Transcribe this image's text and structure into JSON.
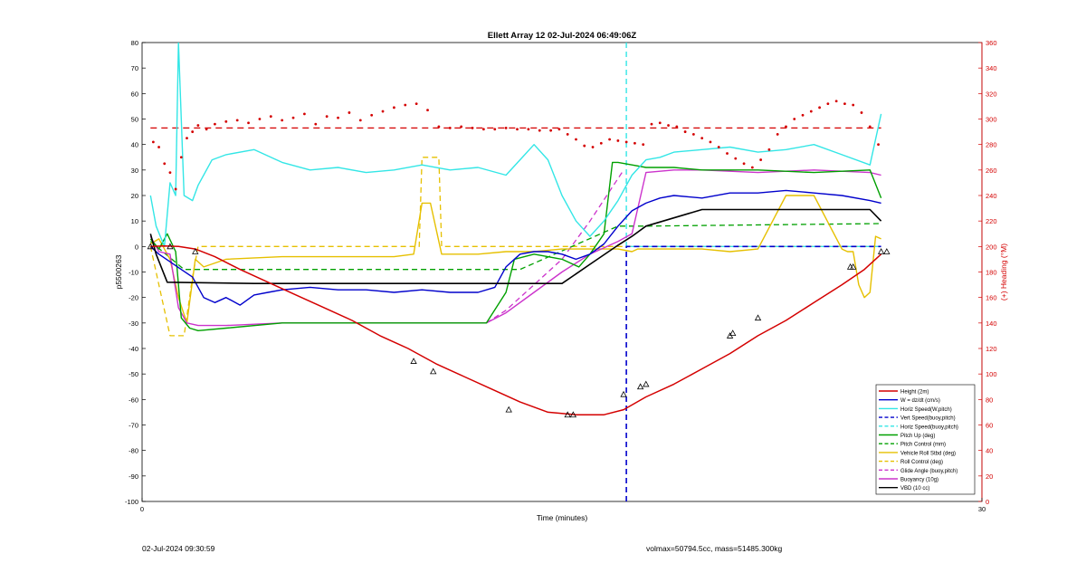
{
  "chart_data": {
    "type": "line",
    "title": "Ellett Array 12 02-Jul-2024 06:49:06Z",
    "xlabel": "Time (minutes)",
    "ylabel": "p5500263",
    "y2label": "(+) Heading (°M)",
    "xlim": [
      0,
      30
    ],
    "ylim": [
      -100,
      80
    ],
    "y2lim": [
      0,
      360
    ],
    "xticks": [
      "0",
      "30"
    ],
    "yticks": [
      "80",
      "70",
      "60",
      "50",
      "40",
      "30",
      "20",
      "10",
      "0",
      "-10",
      "-20",
      "-30",
      "-40",
      "-50",
      "-60",
      "-70",
      "-80",
      "-90",
      "-100"
    ],
    "y2ticks": [
      "360",
      "340",
      "320",
      "300",
      "280",
      "260",
      "240",
      "220",
      "200",
      "180",
      "160",
      "140",
      "120",
      "100",
      "80",
      "60",
      "40",
      "20",
      "0"
    ],
    "grid": false,
    "legend_position": "bottom-right",
    "colors": {
      "height": "#d40000",
      "w": "#0000cc",
      "horiz": "#33e6e6",
      "vert_ref": "#0000cc",
      "horiz_ref": "#33e6e6",
      "pitch": "#00a000",
      "pitch_ctrl": "#00a000",
      "roll": "#e6c000",
      "roll_ctrl": "#e6c000",
      "glide": "#cc33cc",
      "buoy": "#cc33cc",
      "vbd": "#000000",
      "heading": "#d40000"
    },
    "legend": [
      {
        "key": "height",
        "label": "Height (2m)",
        "dash": false
      },
      {
        "key": "w",
        "label": "W = dz/dt (cm/s)",
        "dash": false
      },
      {
        "key": "horiz",
        "label": "Horiz Speed(W,pitch)",
        "dash": false
      },
      {
        "key": "vert_ref",
        "label": "Vert Speed(buoy,pitch)",
        "dash": true
      },
      {
        "key": "horiz_ref",
        "label": "Horiz Speed(buoy,pitch)",
        "dash": true
      },
      {
        "key": "pitch",
        "label": "Pitch Up (deg)",
        "dash": false
      },
      {
        "key": "pitch_ctrl",
        "label": "Pitch Control (mm)",
        "dash": true
      },
      {
        "key": "roll",
        "label": "Vehicle Roll Stbd (deg)",
        "dash": false
      },
      {
        "key": "roll_ctrl",
        "label": "Roll Control (deg)",
        "dash": true
      },
      {
        "key": "glide",
        "label": "Glide Angle (buoy,pitch)",
        "dash": true
      },
      {
        "key": "buoy",
        "label": "Buoyancy (10g)",
        "dash": false
      },
      {
        "key": "vbd",
        "label": "VBD (10 cc)",
        "dash": false
      }
    ],
    "series": {
      "height": {
        "x": [
          0.3,
          0.8,
          1.3,
          1.9,
          2.6,
          3.5,
          4.5,
          5.5,
          6.5,
          7.5,
          8.5,
          9.5,
          10.5,
          11.5,
          12.5,
          13.5,
          14.5,
          15.5,
          16.5,
          17.2,
          18.0,
          19.0,
          20.0,
          21.0,
          22.0,
          23.0,
          24.0,
          25.0,
          25.8,
          26.4
        ],
        "y": [
          0,
          0.2,
          0,
          -1,
          -4,
          -9,
          -14,
          -19,
          -24,
          -29,
          -35,
          -40,
          -46,
          -51,
          -56,
          -61,
          -65,
          -66,
          -66,
          -64,
          -59,
          -54,
          -48,
          -42,
          -35,
          -29,
          -22,
          -15,
          -9,
          -3
        ]
      },
      "height_markers": {
        "x": [
          0.3,
          1.0,
          1.9,
          9.7,
          10.4,
          13.1,
          15.2,
          15.4,
          17.2,
          17.8,
          18.0,
          21.0,
          21.1,
          22.0,
          25.3,
          25.4,
          26.4,
          26.6
        ],
        "y": [
          0,
          0,
          -2,
          -45,
          -49,
          -64,
          -66,
          -66,
          -58,
          -55,
          -54,
          -35,
          -34,
          -28,
          -8,
          -8,
          -2,
          -2
        ]
      },
      "vbd": {
        "x": [
          0.3,
          0.5,
          0.9,
          4,
          8,
          12,
          13,
          14,
          15,
          16,
          17,
          17.5,
          18,
          20,
          24,
          26,
          26.4
        ],
        "y": [
          5,
          -3,
          -14,
          -14.5,
          -14.5,
          -14.5,
          -14.5,
          -14.5,
          -14.5,
          -7,
          0.5,
          4,
          8,
          14.5,
          14.5,
          14.5,
          10
        ]
      },
      "w": {
        "x": [
          0.3,
          0.6,
          1.0,
          1.4,
          1.8,
          2.2,
          2.6,
          3.0,
          3.5,
          4.0,
          4.5,
          5,
          6,
          7,
          8,
          9,
          10,
          11,
          12,
          12.6,
          13,
          13.5,
          14,
          14.5,
          15,
          15.5,
          16,
          16.5,
          17,
          17.5,
          18,
          18.5,
          19,
          20,
          21,
          22,
          23,
          24,
          25,
          26,
          26.4
        ],
        "y": [
          0,
          -3,
          -6,
          -9,
          -12,
          -20,
          -22,
          -20,
          -23,
          -19,
          -18,
          -17,
          -16,
          -17,
          -17,
          -18,
          -17,
          -18,
          -18,
          -16,
          -8,
          -3,
          -2,
          -2,
          -3,
          -5,
          -3,
          1,
          8,
          14,
          17,
          19,
          20,
          19,
          21,
          21,
          22,
          21,
          20,
          18,
          17
        ]
      },
      "horiz": {
        "x": [
          0.3,
          0.5,
          0.8,
          1.0,
          1.2,
          1.3,
          1.5,
          1.8,
          2.0,
          2.5,
          3,
          4,
          5,
          6,
          7,
          8,
          9,
          10,
          11,
          12,
          13,
          13.5,
          14,
          14.5,
          15,
          15.5,
          16,
          16.5,
          17,
          17.5,
          18,
          18.5,
          19,
          20,
          21,
          22,
          23,
          24,
          25,
          26,
          26.4
        ],
        "y": [
          20,
          8,
          0,
          25,
          20,
          80,
          20,
          18,
          24,
          34,
          36,
          38,
          33,
          30,
          31,
          29,
          30,
          32,
          30,
          31,
          28,
          34,
          40,
          34,
          20,
          10,
          4,
          10,
          18,
          28,
          34,
          35,
          37,
          38,
          39,
          37,
          38,
          40,
          36,
          32,
          52
        ]
      },
      "pitch": {
        "x": [
          0.3,
          0.6,
          0.9,
          1.2,
          1.4,
          1.7,
          2,
          3,
          5,
          7,
          9,
          11,
          12.3,
          13,
          13.3,
          14,
          15,
          15.6,
          16,
          16.5,
          16.8,
          17,
          17.5,
          18,
          19,
          20,
          22,
          24,
          26,
          26.4
        ],
        "y": [
          3,
          -1,
          5,
          -2,
          -28,
          -32,
          -33,
          -32,
          -30,
          -30,
          -30,
          -30,
          -30,
          -18,
          -5,
          -3,
          -5,
          -8,
          -3,
          5,
          33,
          33,
          32,
          31,
          31,
          30,
          30,
          29,
          30,
          19
        ]
      },
      "buoy": {
        "x": [
          0.3,
          0.6,
          1.0,
          1.3,
          1.6,
          2,
          3,
          5,
          7,
          9,
          11,
          12.3,
          13,
          14,
          15,
          16,
          17,
          17.5,
          18,
          19,
          20,
          22,
          24,
          26,
          26.4
        ],
        "y": [
          4,
          -2,
          -3,
          -24,
          -30,
          -31,
          -31,
          -30,
          -30,
          -30,
          -30,
          -30,
          -26,
          -18,
          -10,
          -3,
          2,
          5,
          29,
          30,
          30,
          29,
          30,
          29,
          28
        ]
      },
      "roll": {
        "x": [
          0.3,
          0.6,
          1,
          1.3,
          1.6,
          1.9,
          2.2,
          3,
          5,
          7,
          9,
          9.7,
          10.0,
          10.3,
          10.7,
          11,
          12,
          13,
          14,
          15,
          16,
          17,
          17.5,
          17.7,
          18,
          19,
          20,
          21,
          22,
          23,
          24,
          25,
          25.2,
          25.4,
          25.6,
          25.8,
          26.0,
          26.2,
          26.4
        ],
        "y": [
          1,
          3,
          -5,
          -20,
          -30,
          -5,
          -8,
          -5,
          -4,
          -4,
          -4,
          -3,
          17,
          17,
          -3,
          -3,
          -3,
          -2,
          -2,
          -1,
          -1,
          -1,
          -2,
          -1,
          -1,
          -1,
          -1,
          -2,
          -1,
          20,
          20,
          -1,
          -2,
          -2,
          -15,
          -20,
          -18,
          4,
          3
        ]
      },
      "heading": {
        "x": [
          0.4,
          0.6,
          0.8,
          1.0,
          1.2,
          1.4,
          1.6,
          1.8,
          2.0,
          2.3,
          2.6,
          3.0,
          3.4,
          3.8,
          4.2,
          4.6,
          5.0,
          5.4,
          5.8,
          6.2,
          6.6,
          7.0,
          7.4,
          7.8,
          8.2,
          8.6,
          9.0,
          9.4,
          9.8,
          10.2,
          10.6,
          11.0,
          11.4,
          11.8,
          12.2,
          12.6,
          13.0,
          13.4,
          13.8,
          14.2,
          14.6,
          14.9,
          15.2,
          15.5,
          15.8,
          16.1,
          16.4,
          16.7,
          17.0,
          17.3,
          17.6,
          17.9,
          18.2,
          18.5,
          18.8,
          19.1,
          19.4,
          19.7,
          20.0,
          20.3,
          20.6,
          20.9,
          21.2,
          21.5,
          21.8,
          22.1,
          22.4,
          22.7,
          23.0,
          23.3,
          23.6,
          23.9,
          24.2,
          24.5,
          24.8,
          25.1,
          25.4,
          25.7,
          26.0,
          26.3
        ],
        "y": [
          282,
          278,
          265,
          258,
          245,
          270,
          285,
          290,
          295,
          292,
          296,
          298,
          299,
          297,
          300,
          302,
          299,
          301,
          304,
          296,
          302,
          301,
          305,
          299,
          303,
          306,
          309,
          311,
          312,
          307,
          294,
          293,
          294,
          293,
          292,
          292,
          293,
          292,
          292,
          291,
          291,
          292,
          288,
          284,
          279,
          278,
          281,
          284,
          283,
          282,
          281,
          280,
          296,
          297,
          295,
          294,
          290,
          288,
          285,
          282,
          278,
          273,
          269,
          265,
          262,
          268,
          276,
          288,
          294,
          300,
          303,
          306,
          309,
          312,
          314,
          312,
          311,
          305,
          294,
          280
        ]
      }
    },
    "constants": {
      "heading_ref": 293,
      "glide_ref_x": 17.3,
      "vert_ref": {
        "x": [
          17.3,
          17.3,
          26.4
        ],
        "y": [
          -100,
          0,
          0
        ]
      },
      "horiz_ref": {
        "x": [
          17.3,
          17.3,
          26.4
        ],
        "y": [
          80,
          0,
          0
        ]
      },
      "pitch_ctrl": {
        "x": [
          0.3,
          1.5,
          1.8,
          12.3,
          13.5,
          17.0,
          18.0,
          26.4
        ],
        "y": [
          2,
          -9,
          -9,
          -9,
          -9,
          8,
          8,
          9
        ]
      },
      "roll_ctrl": {
        "x": [
          0.3,
          1.0,
          1.2,
          1.5,
          1.8,
          2.0,
          9.9,
          10.0,
          10.3,
          10.6,
          10.7,
          17.2,
          17.3,
          26.2
        ],
        "y": [
          0,
          -35,
          -35,
          -35,
          -12,
          0,
          0,
          35,
          35,
          35,
          0,
          0,
          0,
          0
        ]
      },
      "glide": {
        "x": [
          12.3,
          13,
          14,
          15,
          16,
          17.2
        ],
        "y": [
          -30,
          -25,
          -15,
          -5,
          10,
          30
        ]
      }
    }
  },
  "footer": {
    "left": "02-Jul-2024 09:30:59",
    "right": "volmax=50794.5cc, mass=51485.300kg"
  }
}
